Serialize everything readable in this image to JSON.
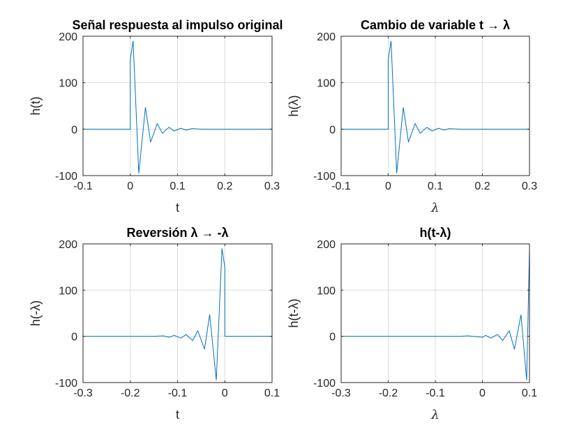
{
  "chart_data": [
    {
      "type": "line",
      "title": "Señal respuesta al impulso original",
      "xlabel": "t",
      "ylabel": "h(t)",
      "xlim": [
        -0.1,
        0.3
      ],
      "ylim": [
        -100,
        200
      ],
      "xticks": [
        "-0.1",
        "0",
        "0.1",
        "0.2",
        "0.3"
      ],
      "yticks": [
        "-100",
        "0",
        "100",
        "200"
      ],
      "grid": true,
      "series": [
        {
          "x": [
            -0.1,
            0.0,
            0.0,
            0.006,
            0.018,
            0.032,
            0.043,
            0.057,
            0.068,
            0.082,
            0.093,
            0.107,
            0.118,
            0.13,
            0.15,
            0.2,
            0.3
          ],
          "y": [
            0,
            0,
            150,
            190,
            -95,
            47,
            -28,
            12,
            -9,
            4,
            -4,
            2,
            -2,
            1,
            0,
            0,
            0
          ]
        }
      ]
    },
    {
      "type": "line",
      "title": "Cambio de variable t → λ",
      "xlabel": "λ",
      "ylabel": "h(λ)",
      "xlim": [
        -0.1,
        0.3
      ],
      "ylim": [
        -100,
        200
      ],
      "xticks": [
        "-0.1",
        "0",
        "0.1",
        "0.2",
        "0.3"
      ],
      "yticks": [
        "-100",
        "0",
        "100",
        "200"
      ],
      "grid": true,
      "series": [
        {
          "x": [
            -0.1,
            0.0,
            0.0,
            0.006,
            0.018,
            0.032,
            0.043,
            0.057,
            0.068,
            0.082,
            0.093,
            0.107,
            0.118,
            0.13,
            0.15,
            0.2,
            0.3
          ],
          "y": [
            0,
            0,
            150,
            190,
            -95,
            47,
            -28,
            12,
            -9,
            4,
            -4,
            2,
            -2,
            1,
            0,
            0,
            0
          ]
        }
      ]
    },
    {
      "type": "line",
      "title": "Reversión λ → -λ",
      "xlabel": "t",
      "ylabel": "h(-λ)",
      "xlim": [
        -0.3,
        0.1
      ],
      "ylim": [
        -100,
        200
      ],
      "xticks": [
        "-0.3",
        "-0.2",
        "-0.1",
        "0",
        "0.1"
      ],
      "yticks": [
        "-100",
        "0",
        "100",
        "200"
      ],
      "grid": true,
      "series": [
        {
          "x": [
            -0.3,
            -0.2,
            -0.15,
            -0.13,
            -0.118,
            -0.107,
            -0.093,
            -0.082,
            -0.068,
            -0.057,
            -0.043,
            -0.032,
            -0.018,
            -0.006,
            0.0,
            0.0,
            0.1
          ],
          "y": [
            0,
            0,
            0,
            1,
            -2,
            2,
            -4,
            4,
            -9,
            12,
            -28,
            47,
            -95,
            190,
            150,
            0,
            0
          ]
        }
      ]
    },
    {
      "type": "line",
      "title": "h(t-λ)",
      "xlabel": "λ",
      "ylabel": "h(t-λ)",
      "xlim": [
        -0.3,
        0.1
      ],
      "ylim": [
        -100,
        200
      ],
      "xticks": [
        "-0.3",
        "-0.2",
        "-0.1",
        "0",
        "0.1"
      ],
      "yticks": [
        "-100",
        "0",
        "100",
        "200"
      ],
      "grid": true,
      "series": [
        {
          "x": [
            -0.3,
            -0.1,
            -0.05,
            -0.03,
            0.0,
            0.007,
            0.018,
            0.032,
            0.043,
            0.057,
            0.068,
            0.082,
            0.094,
            0.1
          ],
          "y": [
            0,
            0,
            0,
            1,
            -2,
            2,
            -4,
            4,
            -9,
            12,
            -28,
            47,
            -95,
            190
          ]
        },
        {
          "x": [
            0.1,
            0.1
          ],
          "y": [
            190,
            85
          ]
        }
      ]
    }
  ]
}
